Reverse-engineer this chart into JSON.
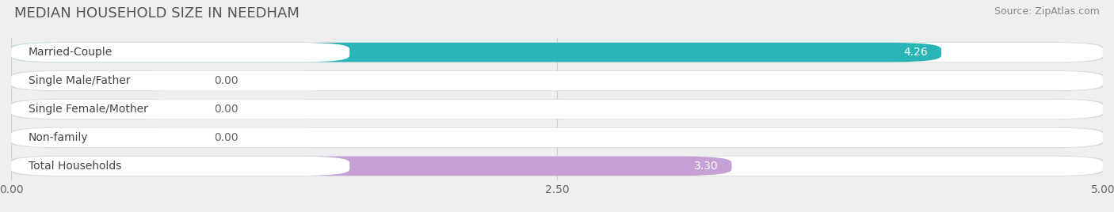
{
  "title": "MEDIAN HOUSEHOLD SIZE IN NEEDHAM",
  "source": "Source: ZipAtlas.com",
  "categories": [
    "Married-Couple",
    "Single Male/Father",
    "Single Female/Mother",
    "Non-family",
    "Total Households"
  ],
  "values": [
    4.26,
    0.0,
    0.0,
    0.0,
    3.3
  ],
  "bar_colors": [
    "#29b5b5",
    "#a8bce8",
    "#f2a0b8",
    "#f5cea0",
    "#c4a0d4"
  ],
  "value_label_colors": [
    "#ffffff",
    "#666666",
    "#666666",
    "#666666",
    "#ffffff"
  ],
  "cat_label_color": "#444444",
  "background_color": "#efefef",
  "bar_bg_color": "#ffffff",
  "bar_shadow_color": "#d8d8d8",
  "xlim": [
    0,
    5.0
  ],
  "xticks": [
    0.0,
    2.5,
    5.0
  ],
  "xtick_labels": [
    "0.00",
    "2.50",
    "5.00"
  ],
  "title_fontsize": 13,
  "source_fontsize": 9,
  "bar_label_fontsize": 10,
  "category_fontsize": 10,
  "tick_fontsize": 10,
  "zero_bar_width": 0.85
}
